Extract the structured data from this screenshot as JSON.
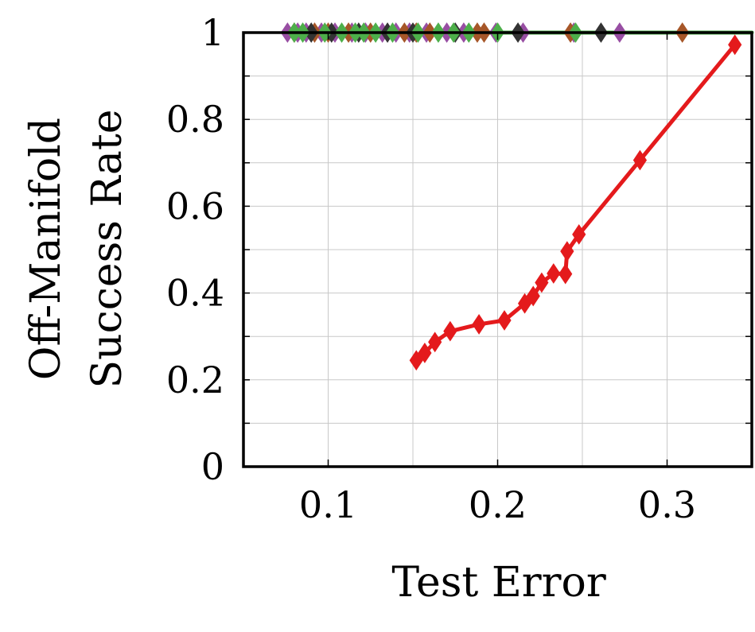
{
  "chart_data": {
    "type": "line",
    "title": "",
    "xlabel": "Test Error",
    "ylabel_lines": [
      "Off-Manifold",
      "Success Rate"
    ],
    "xlim": [
      0.05,
      0.35
    ],
    "ylim": [
      0,
      1
    ],
    "xticks": [
      0.1,
      0.2,
      0.3
    ],
    "xtick_labels": [
      "0.1",
      "0.2",
      "0.3"
    ],
    "yticks": [
      0,
      0.2,
      0.4,
      0.6,
      0.8,
      1
    ],
    "ytick_labels": [
      "0",
      "0.2",
      "0.4",
      "0.6",
      "0.8",
      "1"
    ],
    "grid": true,
    "legend": "none",
    "series": [
      {
        "color": "#e41a1c",
        "marker": "diamond",
        "x": [
          0.152,
          0.157,
          0.163,
          0.172,
          0.189,
          0.204,
          0.216,
          0.221,
          0.226,
          0.233,
          0.24,
          0.241,
          0.248,
          0.284,
          0.34
        ],
        "y": [
          0.245,
          0.262,
          0.287,
          0.312,
          0.328,
          0.337,
          0.376,
          0.393,
          0.424,
          0.445,
          0.444,
          0.496,
          0.535,
          0.706,
          0.972
        ]
      },
      {
        "color": "#984ea3",
        "marker": "diamond",
        "x": [
          0.076,
          0.082,
          0.087,
          0.096,
          0.104,
          0.114,
          0.122,
          0.132,
          0.14,
          0.148,
          0.158,
          0.17,
          0.18,
          0.199,
          0.215,
          0.245,
          0.272
        ],
        "y": [
          1,
          1,
          1,
          1,
          1,
          1,
          1,
          1,
          1,
          1,
          1,
          1,
          1,
          1,
          1,
          1,
          1
        ]
      },
      {
        "color": "#a65628",
        "marker": "diamond",
        "x": [
          0.08,
          0.092,
          0.1,
          0.112,
          0.125,
          0.145,
          0.152,
          0.16,
          0.188,
          0.192,
          0.243,
          0.309
        ],
        "y": [
          1,
          1,
          1,
          1,
          1,
          1,
          1,
          1,
          1,
          1,
          1,
          1
        ]
      },
      {
        "color": "#333333",
        "marker": "diamond",
        "x": [
          0.09,
          0.102,
          0.118,
          0.135,
          0.15,
          0.175,
          0.212,
          0.261
        ],
        "y": [
          1,
          1,
          1,
          1,
          1,
          1,
          1,
          1
        ]
      },
      {
        "color": "#4daf4a",
        "marker": "diamond",
        "x": [
          0.08,
          0.085,
          0.098,
          0.108,
          0.116,
          0.121,
          0.128,
          0.138,
          0.153,
          0.165,
          0.174,
          0.183,
          0.2,
          0.246
        ],
        "y": [
          1,
          1,
          1,
          1,
          1,
          1,
          1,
          1,
          1,
          1,
          1,
          1,
          1,
          1
        ],
        "line_x": [
          0.076,
          0.35
        ]
      }
    ]
  }
}
